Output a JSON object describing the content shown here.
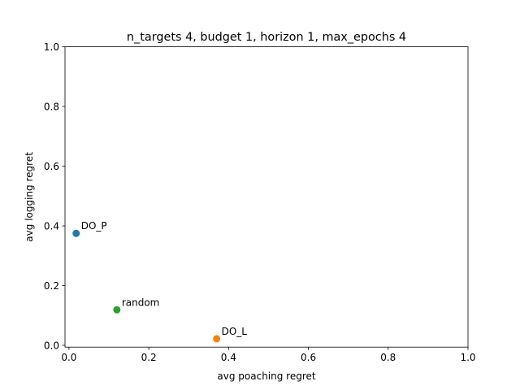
{
  "chart_data": {
    "type": "scatter",
    "title": "n_targets 4, budget 1, horizon 1, max_epochs 4",
    "xlabel": "avg poaching regret",
    "ylabel": "avg logging regret",
    "xlim": [
      -0.01,
      1.0
    ],
    "ylim": [
      -0.006,
      1.0
    ],
    "grid": false,
    "x_ticks": [
      0.0,
      0.2,
      0.4,
      0.6,
      0.8,
      1.0
    ],
    "x_tick_labels": [
      "0.0",
      "0.2",
      "0.4",
      "0.6",
      "0.8",
      "1.0"
    ],
    "y_ticks": [
      0.0,
      0.2,
      0.4,
      0.6,
      0.8,
      1.0
    ],
    "y_tick_labels": [
      "0.0",
      "0.2",
      "0.4",
      "0.6",
      "0.8",
      "1.0"
    ],
    "points": [
      {
        "label": "DO_P",
        "x": 0.018,
        "y": 0.375,
        "color": "#1f77b4"
      },
      {
        "label": "DO_L",
        "x": 0.37,
        "y": 0.022,
        "color": "#ff7f0e"
      },
      {
        "label": "random",
        "x": 0.12,
        "y": 0.119,
        "color": "#2ca02c"
      }
    ]
  }
}
